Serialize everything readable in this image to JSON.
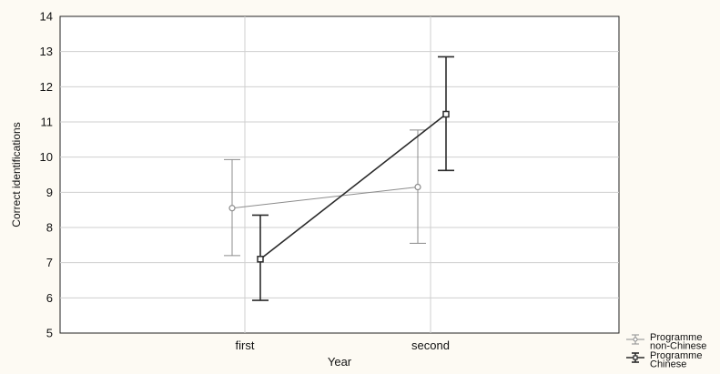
{
  "chart_data": {
    "type": "line",
    "title": "",
    "xlabel": "Year",
    "ylabel": "Correct identifications",
    "categories": [
      "first",
      "second"
    ],
    "ylim": [
      5,
      14
    ],
    "yticks": [
      "5",
      "6",
      "7",
      "8",
      "9",
      "10",
      "11",
      "12",
      "13",
      "14"
    ],
    "grid": true,
    "legend_position": "bottom-right outside",
    "series": [
      {
        "name": "Programme non-Chinese",
        "legend_lines": [
          "Programme",
          "non-Chinese"
        ],
        "color": "#8c8c8c",
        "marker": "circle",
        "values": [
          8.55,
          9.15
        ],
        "lower": [
          7.2,
          7.55
        ],
        "upper": [
          9.93,
          10.77
        ]
      },
      {
        "name": "Programme Chinese",
        "legend_lines": [
          "Programme",
          "Chinese"
        ],
        "color": "#2b2b2b",
        "marker": "square",
        "values": [
          7.1,
          11.22
        ],
        "lower": [
          5.93,
          9.62
        ],
        "upper": [
          8.35,
          12.85
        ]
      }
    ]
  }
}
